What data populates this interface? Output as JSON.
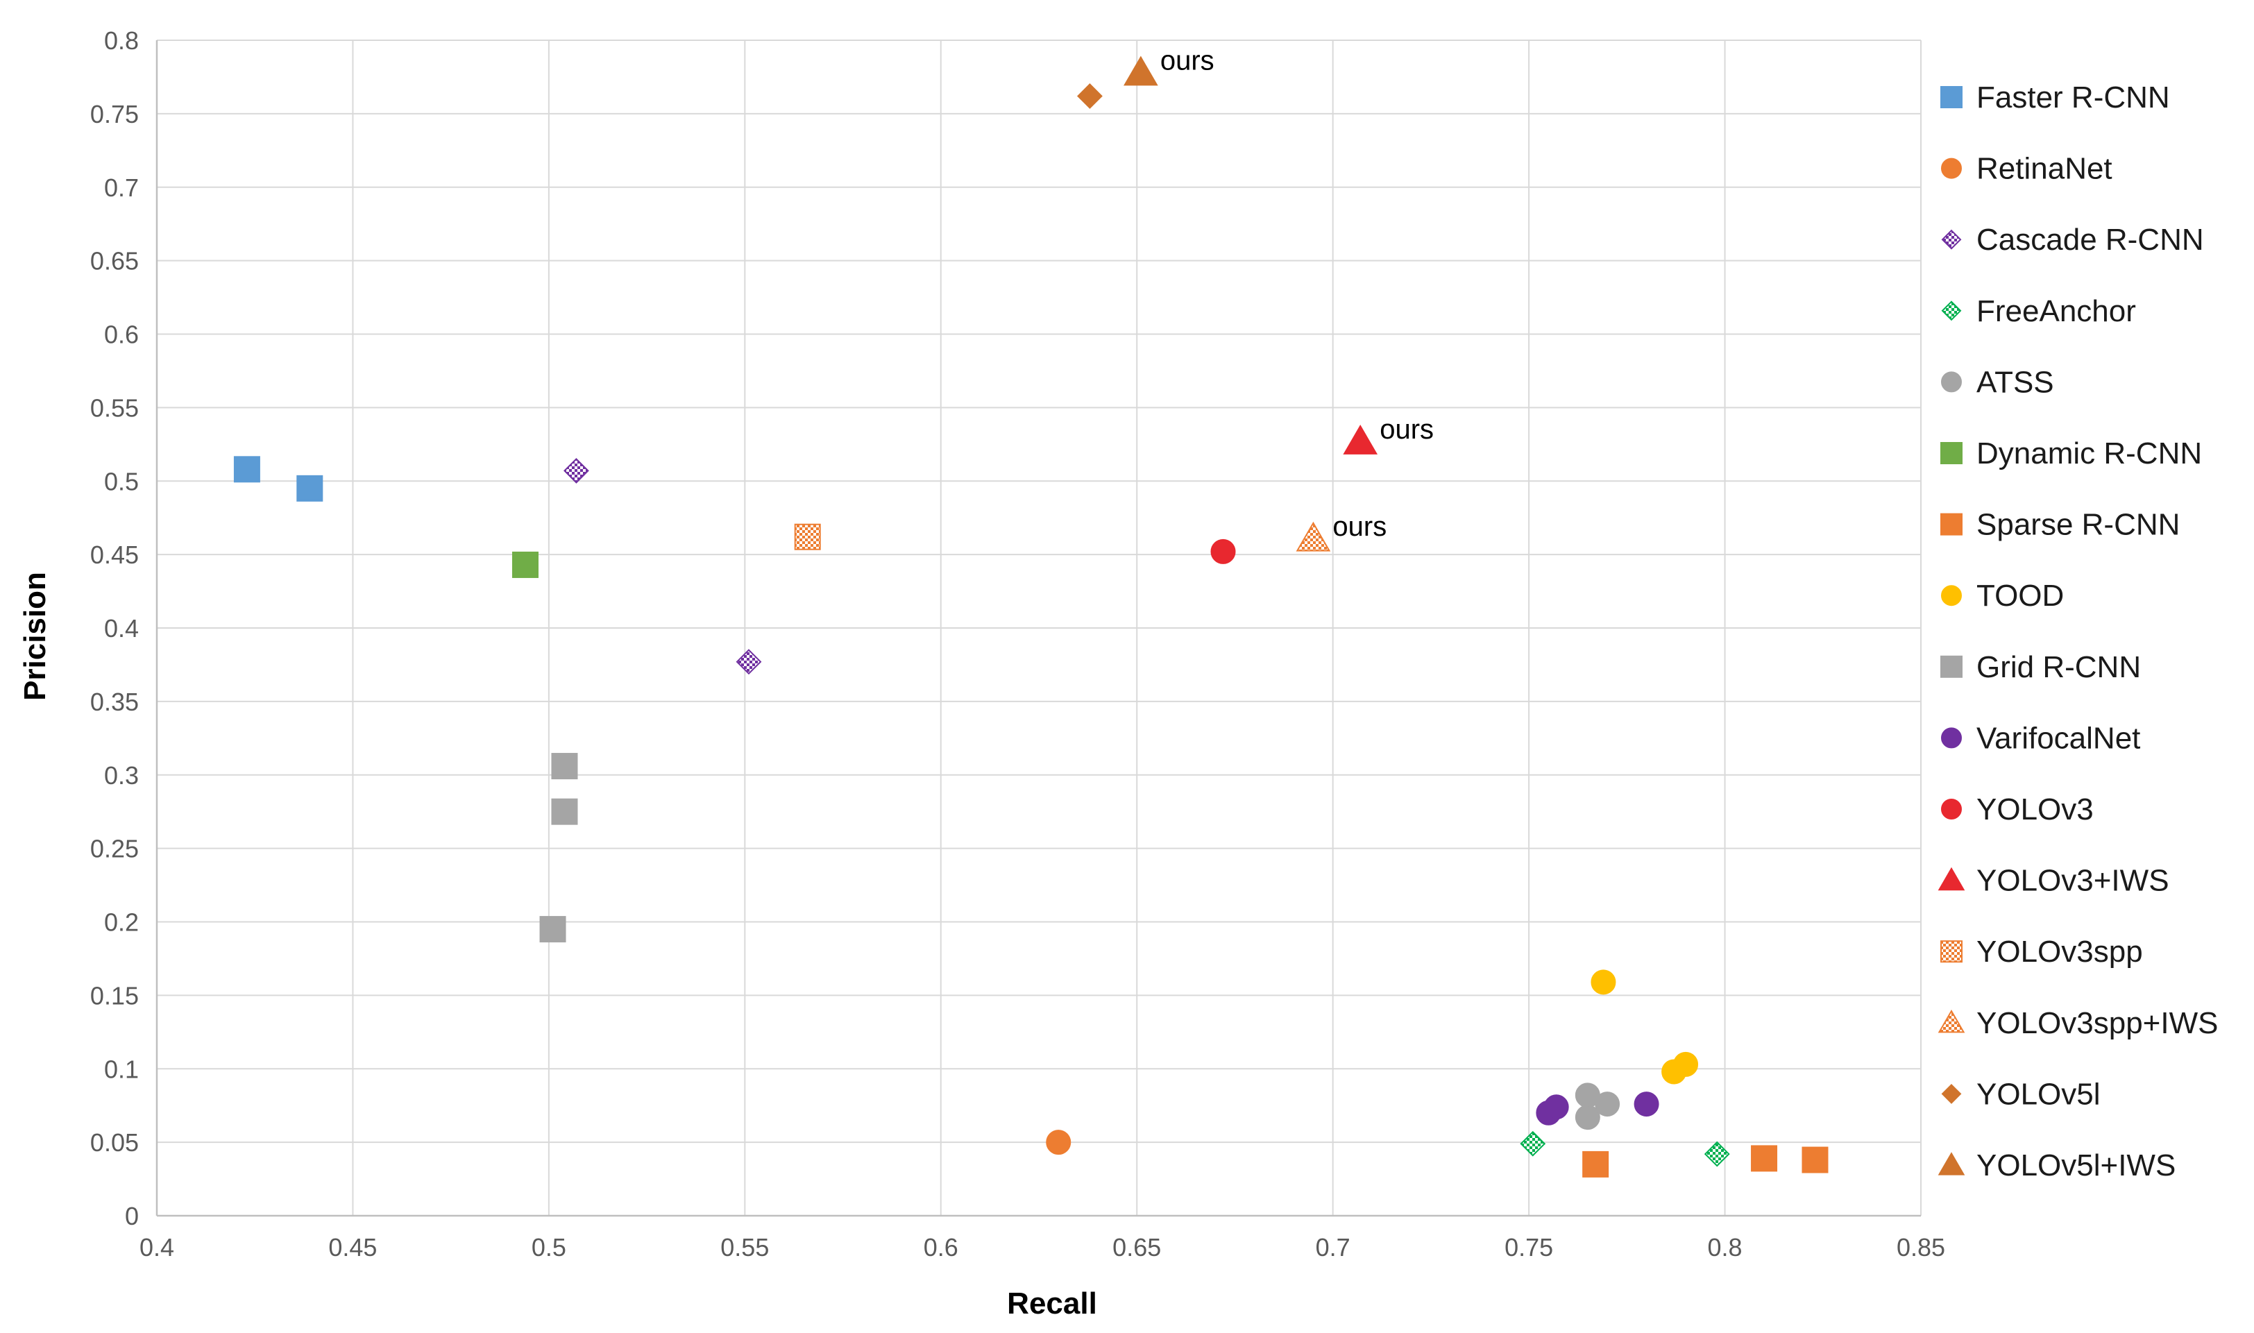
{
  "chart_data": {
    "type": "scatter",
    "title": "",
    "xlabel": "Recall",
    "ylabel": "Pricision",
    "xlim": [
      0.4,
      0.85
    ],
    "ylim": [
      0,
      0.8
    ],
    "xticks": [
      0.4,
      0.45,
      0.5,
      0.55,
      0.6,
      0.65,
      0.7,
      0.75,
      0.8,
      0.85
    ],
    "yticks": [
      0,
      0.05,
      0.1,
      0.15,
      0.2,
      0.25,
      0.3,
      0.35,
      0.4,
      0.45,
      0.5,
      0.55,
      0.6,
      0.65,
      0.7,
      0.75,
      0.8
    ],
    "grid": true,
    "legend_position": "right",
    "series": [
      {
        "name": "Faster R-CNN",
        "marker": "square",
        "color": "#5B9BD5",
        "points": [
          [
            0.423,
            0.508
          ],
          [
            0.439,
            0.495
          ]
        ]
      },
      {
        "name": "RetinaNet",
        "marker": "circle",
        "color": "#ED7D31",
        "points": [
          [
            0.63,
            0.05
          ]
        ]
      },
      {
        "name": "Cascade R-CNN",
        "marker": "diamond",
        "pattern": "checker",
        "color": "#7030A0",
        "points": [
          [
            0.507,
            0.507
          ],
          [
            0.551,
            0.377
          ]
        ]
      },
      {
        "name": "FreeAnchor",
        "marker": "diamond",
        "pattern": "checker",
        "color": "#00B050",
        "points": [
          [
            0.751,
            0.049
          ],
          [
            0.798,
            0.042
          ]
        ]
      },
      {
        "name": "ATSS",
        "marker": "circle",
        "color": "#A5A5A5",
        "points": [
          [
            0.765,
            0.082
          ],
          [
            0.77,
            0.076
          ],
          [
            0.765,
            0.067
          ]
        ]
      },
      {
        "name": "Dynamic R-CNN",
        "marker": "square",
        "color": "#70AD47",
        "points": [
          [
            0.494,
            0.443
          ]
        ]
      },
      {
        "name": "Sparse R-CNN",
        "marker": "square",
        "color": "#ED7D31",
        "points": [
          [
            0.767,
            0.035
          ],
          [
            0.81,
            0.039
          ],
          [
            0.823,
            0.038
          ]
        ]
      },
      {
        "name": "TOOD",
        "marker": "circle",
        "color": "#FFC000",
        "points": [
          [
            0.769,
            0.159
          ],
          [
            0.787,
            0.098
          ],
          [
            0.79,
            0.103
          ]
        ]
      },
      {
        "name": "Grid R-CNN",
        "marker": "square",
        "color": "#A5A5A5",
        "points": [
          [
            0.504,
            0.306
          ],
          [
            0.504,
            0.275
          ],
          [
            0.501,
            0.195
          ]
        ]
      },
      {
        "name": "VarifocalNet",
        "marker": "circle",
        "color": "#7030A0",
        "points": [
          [
            0.755,
            0.07
          ],
          [
            0.757,
            0.074
          ],
          [
            0.78,
            0.076
          ]
        ]
      },
      {
        "name": "YOLOv3",
        "marker": "circle",
        "color": "#E8282F",
        "points": [
          [
            0.672,
            0.452
          ]
        ]
      },
      {
        "name": "YOLOv3+IWS",
        "marker": "triangle",
        "color": "#E8282F",
        "points": [
          [
            0.707,
            0.527
          ]
        ],
        "annotation": "ours"
      },
      {
        "name": "YOLOv3spp",
        "marker": "square",
        "pattern": "checker",
        "color": "#ED7D31",
        "points": [
          [
            0.566,
            0.462
          ]
        ]
      },
      {
        "name": "YOLOv3spp+IWS",
        "marker": "triangle",
        "pattern": "checker",
        "color": "#ED7D31",
        "points": [
          [
            0.695,
            0.461
          ]
        ],
        "annotation": "ours"
      },
      {
        "name": "YOLOv5l",
        "marker": "diamond",
        "color": "#D0742C",
        "points": [
          [
            0.638,
            0.762
          ]
        ]
      },
      {
        "name": "YOLOv5l+IWS",
        "marker": "triangle",
        "color": "#D0742C",
        "points": [
          [
            0.651,
            0.778
          ]
        ],
        "annotation": "ours"
      }
    ]
  }
}
